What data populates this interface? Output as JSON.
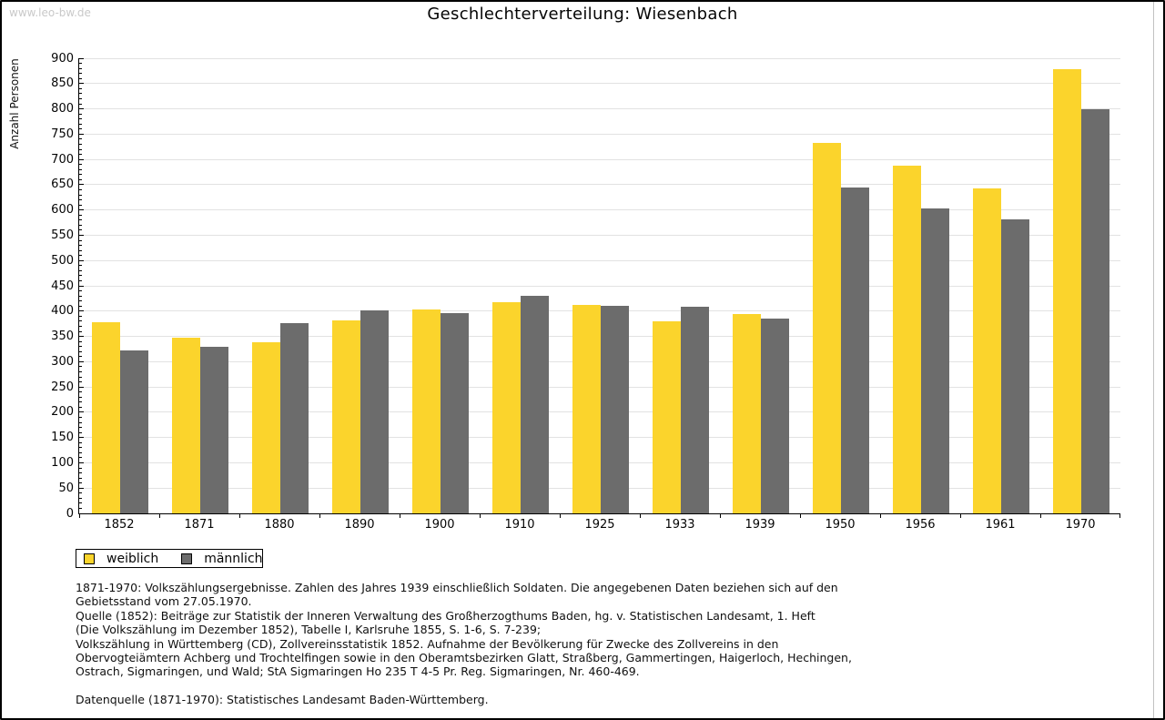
{
  "watermark": "www.leo-bw.de",
  "title": "Geschlechterverteilung: Wiesenbach",
  "legend": {
    "items": [
      {
        "label": "weiblich",
        "color": "#FBD42C"
      },
      {
        "label": "männlich",
        "color": "#6C6C6C"
      }
    ]
  },
  "footnotes": {
    "lines": [
      "1871-1970: Volkszählungsergebnisse. Zahlen des Jahres 1939 einschließlich Soldaten. Die angegebenen Daten beziehen sich auf den",
      "Gebietsstand vom 27.05.1970.",
      "Quelle (1852): Beiträge zur Statistik der Inneren Verwaltung des Großherzogthums Baden, hg. v. Statistischen Landesamt, 1. Heft",
      "(Die Volkszählung im Dezember 1852), Tabelle I, Karlsruhe 1855, S. 1-6, S. 7-239;",
      "Volkszählung in Württemberg (CD), Zollvereinsstatistik 1852. Aufnahme der Bevölkerung für Zwecke des Zollvereins in den",
      "Obervogteiämtern Achberg und Trochtelfingen sowie in den Oberamtsbezirken Glatt, Straßberg, Gammertingen, Haigerloch, Hechingen,",
      "Ostrach, Sigmaringen, und Wald; StA Sigmaringen Ho 235 T 4-5 Pr. Reg. Sigmaringen, Nr. 460-469.",
      "",
      "Datenquelle (1871-1970): Statistisches Landesamt Baden-Württemberg."
    ]
  },
  "chart_data": {
    "type": "bar",
    "title": "Geschlechterverteilung: Wiesenbach",
    "xlabel": "",
    "ylabel": "Anzahl Personen",
    "ylim": [
      0,
      900
    ],
    "ytick_major": 50,
    "ytick_minor": 10,
    "grid": true,
    "legend_position": "bottom-left",
    "categories": [
      "1852",
      "1871",
      "1880",
      "1890",
      "1900",
      "1910",
      "1925",
      "1933",
      "1939",
      "1950",
      "1956",
      "1961",
      "1970"
    ],
    "series": [
      {
        "name": "weiblich",
        "color": "#FBD42C",
        "values": [
          378,
          348,
          339,
          381,
          403,
          418,
          412,
          379,
          394,
          733,
          687,
          642,
          878
        ]
      },
      {
        "name": "männlich",
        "color": "#6C6C6C",
        "values": [
          323,
          330,
          377,
          401,
          396,
          430,
          410,
          409,
          385,
          645,
          603,
          581,
          800
        ]
      }
    ]
  }
}
